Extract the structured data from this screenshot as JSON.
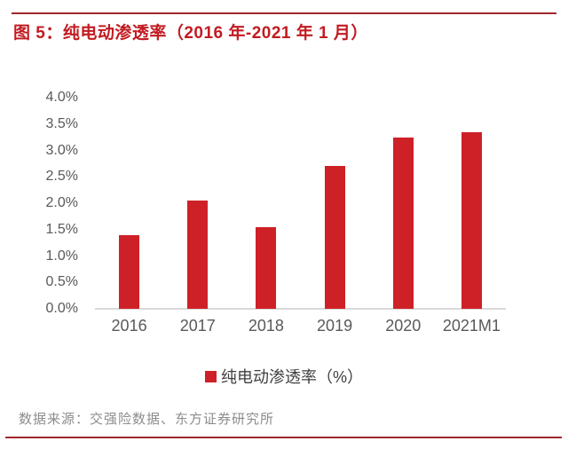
{
  "header": {
    "title": "图 5：纯电动渗透率（2016 年-2021 年 1 月）",
    "title_color": "#C21B21",
    "rule_color": "#A2262C"
  },
  "chart_data": {
    "type": "bar",
    "title": "纯电动渗透率（2016 年-2021 年 1 月）",
    "categories": [
      "2016",
      "2017",
      "2018",
      "2019",
      "2020",
      "2021M1"
    ],
    "values": [
      1.4,
      2.05,
      1.55,
      2.7,
      3.25,
      3.35
    ],
    "unit": "%",
    "xlabel": "",
    "ylabel": "",
    "ylim": [
      0,
      4.0
    ],
    "ytick_step": 0.5,
    "ytick_labels": [
      "0.0%",
      "0.5%",
      "1.0%",
      "1.5%",
      "2.0%",
      "2.5%",
      "3.0%",
      "3.5%",
      "4.0%"
    ],
    "grid": false,
    "bar_color": "#CE2127",
    "axis_line_color": "#D9D9D9",
    "tick_label_color": "#595959",
    "legend": {
      "label": "纯电动渗透率（%）",
      "swatch_color": "#CE2127",
      "position": "bottom-center"
    }
  },
  "footer": {
    "source": "数据来源：交强险数据、东方证券研究所",
    "source_color": "#8C8C8C",
    "rule_color": "#A2262C"
  }
}
